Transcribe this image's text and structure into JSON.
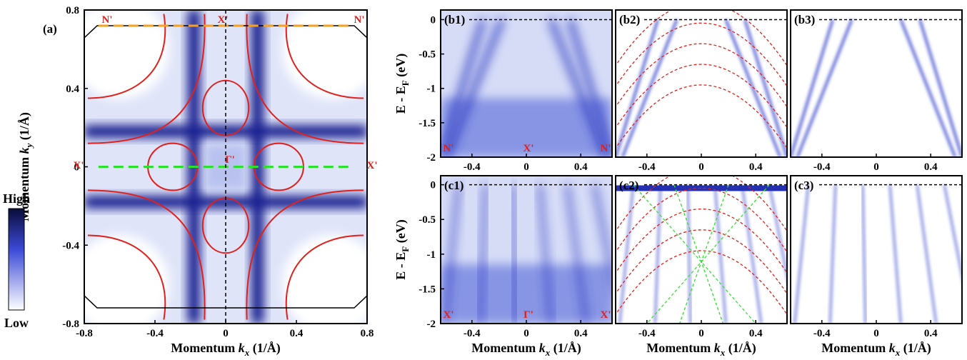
{
  "chart_data": [
    {
      "type": "heatmap",
      "panel_label": "(a)",
      "xlabel": [
        "Momentum ",
        "k",
        "x",
        " (1/Å)"
      ],
      "ylabel": [
        "Momentum ",
        "k",
        "y",
        " (1/Å)"
      ],
      "xlim": [
        -0.8,
        0.8
      ],
      "ylim": [
        -0.8,
        0.8
      ],
      "xticks": [
        -0.8,
        -0.4,
        0,
        0.4,
        0.8
      ],
      "yticks": [
        -0.8,
        -0.4,
        0,
        0.4,
        0.8
      ],
      "annotations": [
        "N'",
        "X'",
        "N'",
        "X'",
        "Γ'",
        "X'"
      ],
      "colorbar_labels": [
        "High",
        "Low"
      ]
    },
    {
      "type": "heatmap",
      "panel_label": "(b1)",
      "ylabel": [
        "E - E",
        "F",
        " (eV)"
      ],
      "xlim": [
        -0.63,
        0.63
      ],
      "ylim": [
        -2,
        0.14
      ],
      "xticks": [
        -0.4,
        0,
        0.4
      ],
      "yticks": [
        0,
        -0.5,
        -1,
        -1.5,
        -2
      ],
      "annotations": [
        "N'",
        "X'",
        "N'"
      ]
    },
    {
      "type": "heatmap",
      "panel_label": "(b2)",
      "xlim": [
        -0.63,
        0.63
      ],
      "ylim": [
        -2,
        0.14
      ],
      "xticks": [
        -0.4,
        0,
        0.4
      ]
    },
    {
      "type": "heatmap",
      "panel_label": "(b3)",
      "xlim": [
        -0.63,
        0.63
      ],
      "ylim": [
        -2,
        0.14
      ],
      "xticks": [
        -0.4,
        0,
        0.4
      ]
    },
    {
      "type": "heatmap",
      "panel_label": "(c1)",
      "ylabel": [
        "E - E",
        "F",
        " (eV)"
      ],
      "xlabel": [
        "Momentum ",
        "k",
        "x",
        " (1/Å)"
      ],
      "xlim": [
        -0.63,
        0.63
      ],
      "ylim": [
        -2,
        0.13
      ],
      "xticks": [
        -0.4,
        0,
        0.4
      ],
      "yticks": [
        0,
        -0.5,
        -1,
        -1.5,
        -2
      ],
      "annotations": [
        "X'",
        "Γ'",
        "X'"
      ]
    },
    {
      "type": "heatmap",
      "panel_label": "(c2)",
      "xlabel": [
        "Momentum ",
        "k",
        "x",
        " (1/Å)"
      ],
      "xlim": [
        -0.63,
        0.63
      ],
      "ylim": [
        -2,
        0.13
      ],
      "xticks": [
        -0.4,
        0,
        0.4
      ]
    },
    {
      "type": "heatmap",
      "panel_label": "(c3)",
      "xlabel": [
        "Momentum ",
        "k",
        "x",
        " (1/Å)"
      ],
      "xlim": [
        -0.63,
        0.63
      ],
      "ylim": [
        -2,
        0.13
      ],
      "xticks": [
        -0.4,
        0,
        0.4
      ]
    }
  ]
}
